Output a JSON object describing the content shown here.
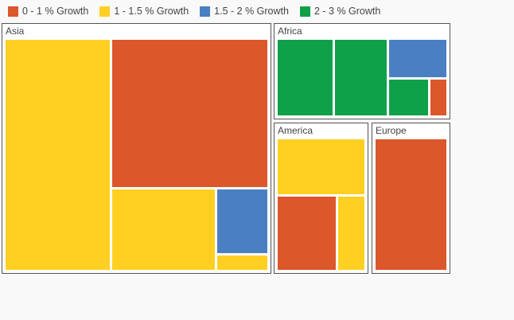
{
  "chart_data": {
    "type": "treemap",
    "legend": [
      {
        "key": "g0",
        "label": "0 - 1 % Growth",
        "color": "#dc572a"
      },
      {
        "key": "g1",
        "label": "1 - 1.5 % Growth",
        "color": "#ffd022"
      },
      {
        "key": "g2",
        "label": "1.5 - 2 % Growth",
        "color": "#4a80c2"
      },
      {
        "key": "g3",
        "label": "2 - 3 % Growth",
        "color": "#0fa14a"
      }
    ],
    "legend_position": "top-left",
    "groups": [
      {
        "name": "Asia",
        "items": [
          {
            "category": "g1",
            "value": 36.4
          },
          {
            "category": "g0",
            "value": 34.5
          },
          {
            "category": "g1",
            "value": 12.8
          },
          {
            "category": "g2",
            "value": 5.1
          },
          {
            "category": "g1",
            "value": 1.3
          }
        ]
      },
      {
        "name": "Africa",
        "items": [
          {
            "category": "g3",
            "value": 6.4
          },
          {
            "category": "g3",
            "value": 6.0
          },
          {
            "category": "g2",
            "value": 3.4
          },
          {
            "category": "g3",
            "value": 2.3
          },
          {
            "category": "g0",
            "value": 1.0
          }
        ]
      },
      {
        "name": "America",
        "items": [
          {
            "category": "g1",
            "value": 7.8
          },
          {
            "category": "g0",
            "value": 7.0
          },
          {
            "category": "g1",
            "value": 3.3
          }
        ]
      },
      {
        "name": "Europe",
        "items": [
          {
            "category": "g0",
            "value": 15.4
          }
        ]
      }
    ]
  }
}
